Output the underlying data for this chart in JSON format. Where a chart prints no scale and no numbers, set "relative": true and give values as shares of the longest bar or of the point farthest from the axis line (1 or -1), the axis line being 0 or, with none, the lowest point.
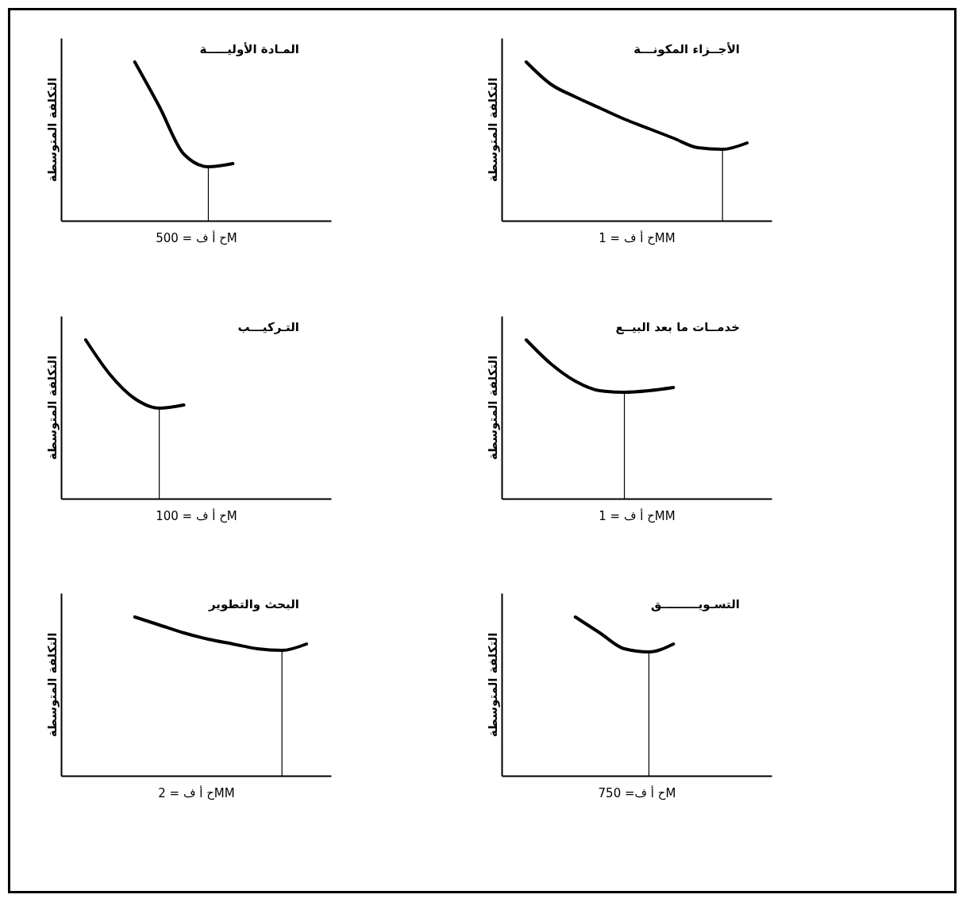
{
  "chart_data": [
    {
      "type": "line",
      "title": "المـادة الأوليـــــة",
      "ylabel": "التكلفة المتوسطة",
      "xlabel": "ح أ ف = 500M",
      "relative": true,
      "categories": [
        null,
        null,
        null,
        null,
        null,
        null,
        null,
        null,
        null,
        null,
        null,
        null
      ],
      "series": [
        {
          "color": "#000000",
          "values": [
            null,
            null,
            null,
            1.0,
            0.72,
            0.42,
            0.34,
            0.36,
            null,
            null,
            null,
            null
          ]
        }
      ],
      "grid": false,
      "marker": "none",
      "line_style": "solid"
    },
    {
      "type": "line",
      "title": "الأجــزاء المكونـــة",
      "ylabel": "التكلفة المتوسطة",
      "xlabel": "ح أ ف = 1MM",
      "relative": true,
      "categories": [
        null,
        null,
        null,
        null,
        null,
        null,
        null,
        null,
        null,
        null,
        null,
        null
      ],
      "series": [
        {
          "color": "#000000",
          "values": [
            null,
            1.0,
            0.86,
            0.78,
            0.71,
            0.64,
            0.58,
            0.52,
            0.46,
            0.45,
            0.49,
            null
          ]
        }
      ],
      "grid": false,
      "marker": "none",
      "line_style": "solid"
    },
    {
      "type": "line",
      "title": "التـركيـــب",
      "ylabel": "التكلفة المتوسطة",
      "xlabel": "ح أ ف = 100M",
      "relative": true,
      "categories": [
        null,
        null,
        null,
        null,
        null,
        null,
        null,
        null,
        null,
        null,
        null,
        null
      ],
      "series": [
        {
          "color": "#000000",
          "values": [
            null,
            1.0,
            0.78,
            0.63,
            0.57,
            0.59,
            null,
            null,
            null,
            null,
            null,
            null
          ]
        }
      ],
      "grid": false,
      "marker": "none",
      "line_style": "solid"
    },
    {
      "type": "line",
      "title": "خدمــات ما بعد البيــع",
      "ylabel": "التكلفة المتوسطة",
      "xlabel": "ح أ ف = 1MM",
      "relative": true,
      "categories": [
        null,
        null,
        null,
        null,
        null,
        null,
        null,
        null,
        null,
        null,
        null,
        null
      ],
      "series": [
        {
          "color": "#000000",
          "values": [
            null,
            1.0,
            0.85,
            0.74,
            0.68,
            0.67,
            0.68,
            0.7,
            null,
            null,
            null,
            null
          ]
        }
      ],
      "grid": false,
      "marker": "none",
      "line_style": "solid"
    },
    {
      "type": "line",
      "title": "البحث والتطوير",
      "ylabel": "التكلفة المتوسطة",
      "xlabel": "ح أ ف = 2MM",
      "relative": true,
      "categories": [
        null,
        null,
        null,
        null,
        null,
        null,
        null,
        null,
        null,
        null,
        null,
        null
      ],
      "series": [
        {
          "color": "#000000",
          "values": [
            null,
            null,
            null,
            1.0,
            0.95,
            0.9,
            0.86,
            0.83,
            0.8,
            0.79,
            0.83,
            null
          ]
        }
      ],
      "grid": false,
      "marker": "none",
      "line_style": "solid"
    },
    {
      "type": "line",
      "title": "التسـويـــــــــق",
      "ylabel": "التكلفة المتوسطة",
      "xlabel": "ح أ ف= 750M",
      "relative": true,
      "categories": [
        null,
        null,
        null,
        null,
        null,
        null,
        null,
        null,
        null,
        null,
        null,
        null
      ],
      "series": [
        {
          "color": "#000000",
          "values": [
            null,
            null,
            null,
            1.0,
            0.9,
            0.8,
            0.78,
            0.83,
            null,
            null,
            null,
            null
          ]
        }
      ],
      "grid": false,
      "marker": "none",
      "line_style": "solid"
    }
  ]
}
